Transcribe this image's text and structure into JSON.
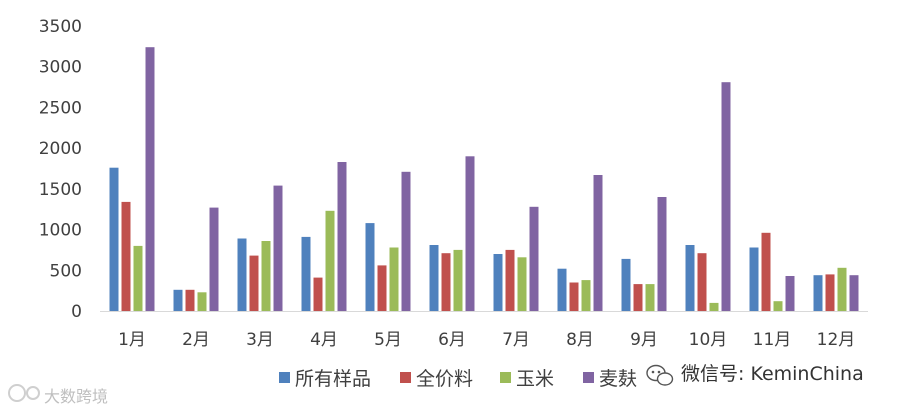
{
  "chart_data": {
    "type": "bar",
    "title": "",
    "xlabel": "",
    "ylabel": "",
    "ylim": [
      0,
      3500
    ],
    "yticks": [
      0,
      500,
      1000,
      1500,
      2000,
      2500,
      3000,
      3500
    ],
    "categories": [
      "1月",
      "2月",
      "3月",
      "4月",
      "5月",
      "6月",
      "7月",
      "8月",
      "9月",
      "10月",
      "11月",
      "12月"
    ],
    "series": [
      {
        "name": "所有样品",
        "color": "#4f81bd",
        "values": [
          1760,
          260,
          890,
          910,
          1080,
          810,
          700,
          520,
          640,
          810,
          780,
          440
        ]
      },
      {
        "name": "全价料",
        "color": "#c0504d",
        "values": [
          1340,
          260,
          680,
          410,
          560,
          710,
          750,
          350,
          330,
          710,
          960,
          450
        ]
      },
      {
        "name": "玉米",
        "color": "#9bbb59",
        "values": [
          800,
          230,
          860,
          1230,
          780,
          750,
          660,
          380,
          330,
          100,
          120,
          530
        ]
      },
      {
        "name": "麦麸",
        "color": "#8064a2",
        "values": [
          3240,
          1270,
          1540,
          1830,
          1710,
          1900,
          1280,
          1670,
          1400,
          2810,
          430,
          440
        ]
      }
    ],
    "grid": false,
    "legend_position": "bottom"
  },
  "watermarks": {
    "wechat": "微信号: KeminChina",
    "logo": "大数跨境",
    "wechat_icon": "wechat-icon",
    "logo_icon": "dashu-logo-icon"
  }
}
